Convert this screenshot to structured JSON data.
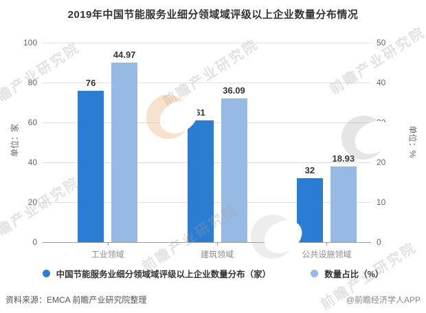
{
  "title": "2019年中国节能服务业细分领域域评级以上企业数量分布情况",
  "chart_data": {
    "type": "bar",
    "categories": [
      "工业领域",
      "建筑领域",
      "公共设施领域"
    ],
    "series": [
      {
        "name": "中国节能服务业细分领域域评级以上企业数量分布（家）",
        "axis": "left",
        "color": "#2B7CD3",
        "values": [
          76,
          61,
          32
        ]
      },
      {
        "name": "数量占比（%）",
        "axis": "right",
        "color": "#96BAE4",
        "values": [
          44.97,
          36.09,
          18.93
        ]
      }
    ],
    "left_axis": {
      "label": "单位：家",
      "ticks": [
        "100",
        "80",
        "60",
        "40",
        "20",
        "0"
      ],
      "min": 0,
      "max": 100
    },
    "right_axis": {
      "label": "单位：%",
      "ticks": [
        "50",
        "40",
        "30",
        "20",
        "10",
        "0"
      ],
      "min": 0,
      "max": 50
    },
    "grid": true,
    "legend_position": "bottom"
  },
  "footer": {
    "source": "资料来源：EMCA 前瞻产业研究院整理",
    "credit": "@前瞻经济学人APP"
  },
  "watermark": {
    "text": "前瞻产业研究院"
  },
  "colors": {
    "bar_primary": "#2B7CD3",
    "bar_secondary": "#96BAE4",
    "gridline": "#e0e0e0",
    "axis_line": "#999999",
    "title_text": "#333333",
    "watermark_orange": "rgba(233,150,74,0.28)",
    "watermark_gray": "rgba(170,170,170,0.30)"
  }
}
